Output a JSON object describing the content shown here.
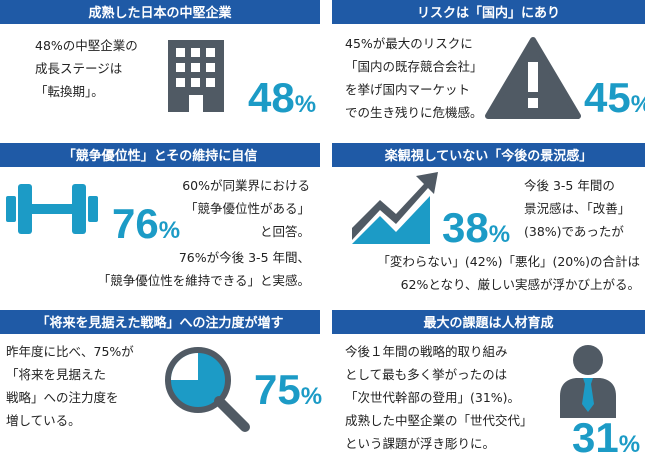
{
  "panels": [
    {
      "title": "成熟した日本の中堅企業",
      "paragraphs": [
        [
          "48%の中堅企業の",
          "成長ステージは",
          "「転換期」。"
        ]
      ],
      "big_number": "48",
      "unit": "%"
    },
    {
      "title": "リスクは「国内」にあり",
      "paragraphs": [
        [
          "45%が最大のリスクに",
          "「国内の既存競合会社」",
          "を挙げ国内マーケット",
          "での生き残りに危機感。"
        ]
      ],
      "big_number": "45",
      "unit": "%"
    },
    {
      "title": "「競争優位性」とその維持に自信",
      "paragraphs": [
        [
          "60%が同業界における",
          "「競争優位性がある」",
          "と回答。"
        ],
        [
          "76%が今後 3-5 年間、",
          "「競争優位性を維持できる」と実感。"
        ]
      ],
      "big_number": "76",
      "unit": "%"
    },
    {
      "title": "楽観視していない「今後の景況感」",
      "paragraphs": [
        [
          "今後 3-5 年間の",
          "景況感は、「改善」",
          "(38%)であったが"
        ],
        [
          "「変わらない」(42%)「悪化」(20%)の合計は",
          "62%となり、厳しい実感が浮かび上がる。"
        ]
      ],
      "big_number": "38",
      "unit": "%"
    },
    {
      "title": "「将来を見据えた戦略」への注力度が増す",
      "paragraphs": [
        [
          "昨年度に比べ、75%が",
          "「将来を見据えた",
          "戦略」への注力度を",
          "増している。"
        ]
      ],
      "big_number": "75",
      "unit": "%"
    },
    {
      "title": "最大の課題は人材育成",
      "paragraphs": [
        [
          "今後１年間の戦略的取り組み",
          "として最も多く挙がったのは",
          "「次世代幹部の登用」(31%)。",
          "成熟した中堅企業の「世代交代」",
          "という課題が浮き彫りに。"
        ]
      ],
      "big_number": "31",
      "unit": "%"
    }
  ]
}
